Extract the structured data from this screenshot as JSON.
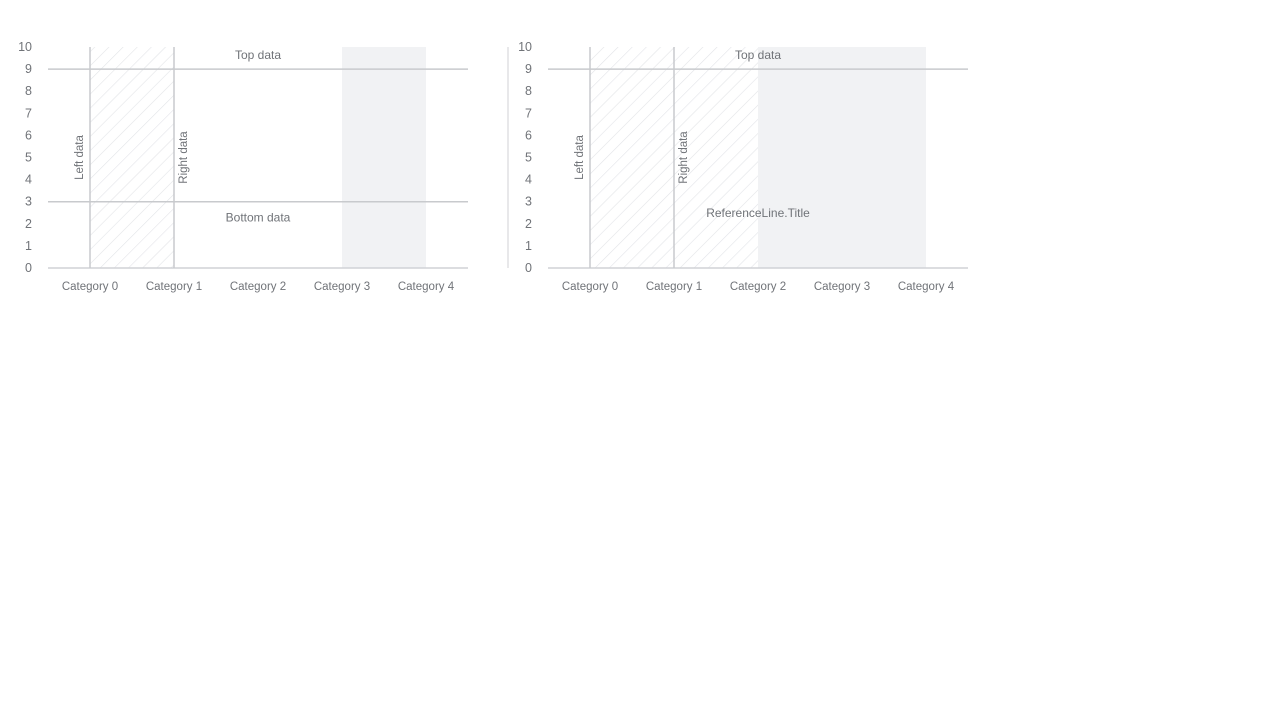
{
  "colors": {
    "axis": "#d0d2d6",
    "reference_line": "#c8cacd",
    "band_fill": "#f1f2f4",
    "hatch": "#e2e4e7",
    "tick_text": "#707378",
    "label_text": "#707378"
  },
  "chart_data": [
    {
      "type": "bar",
      "title": "",
      "xlabel": "",
      "ylabel": "",
      "categories": [
        "Category 0",
        "Category 1",
        "Category 2",
        "Category 3",
        "Category 4"
      ],
      "yticks": [
        "0",
        "1",
        "2",
        "3",
        "4",
        "5",
        "6",
        "7",
        "8",
        "9",
        "10"
      ],
      "ylim": [
        0,
        10
      ],
      "grid": false,
      "series": [],
      "reference_bands": [
        {
          "from": "Category 0",
          "to": "Category 1",
          "style": "hatched"
        },
        {
          "from": "Category 3",
          "to": "Category 4",
          "style": "solid"
        }
      ],
      "reference_lines": [
        {
          "axis": "y",
          "value": 9,
          "label": "Top data"
        },
        {
          "axis": "y",
          "value": 3,
          "label": "Bottom data"
        },
        {
          "axis": "x",
          "value": "Category 0",
          "label": "Left data"
        },
        {
          "axis": "x",
          "value": "Category 1",
          "label": "Right data"
        }
      ]
    },
    {
      "type": "bar",
      "title": "",
      "xlabel": "",
      "ylabel": "",
      "categories": [
        "Category 0",
        "Category 1",
        "Category 2",
        "Category 3",
        "Category 4"
      ],
      "yticks": [
        "0",
        "1",
        "2",
        "3",
        "4",
        "5",
        "6",
        "7",
        "8",
        "9",
        "10"
      ],
      "ylim": [
        0,
        10
      ],
      "grid": false,
      "series": [],
      "reference_bands": [
        {
          "from": "Category 0",
          "to": "Category 2",
          "style": "hatched"
        },
        {
          "from": "Category 2",
          "to": "Category 4",
          "style": "solid"
        }
      ],
      "reference_lines": [
        {
          "axis": "y",
          "value": 9,
          "label": "Top data"
        },
        {
          "axis": "x",
          "value": "Category 0",
          "label": "Left data"
        },
        {
          "axis": "x",
          "value": "Category 1",
          "label": "Right data"
        }
      ],
      "floating_labels": [
        {
          "x": "Category 2",
          "y": 2.3,
          "label": "ReferenceLine.Title"
        }
      ]
    }
  ]
}
